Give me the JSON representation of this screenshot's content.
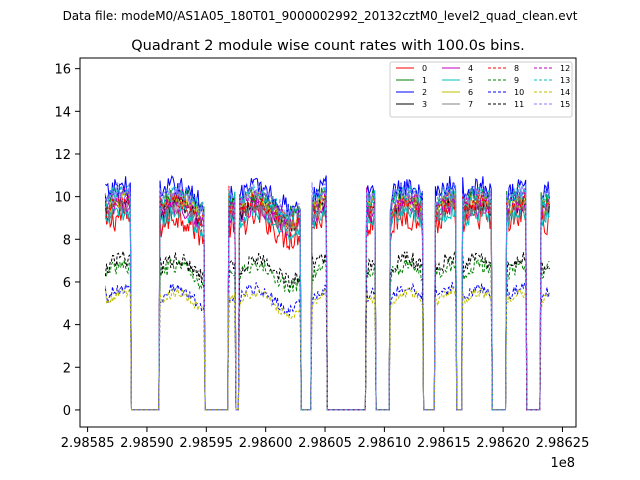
{
  "chart_data": {
    "type": "line",
    "suptitle": "Data file: modeM0/AS1A05_180T01_9000002992_20132cztM0_level2_quad_clean.evt",
    "title": "Quadrant 2 module wise count rates with 100.0s bins.",
    "xlabel": "",
    "ylabel": "",
    "x_offset_label": "1e8",
    "xlim": [
      298584360,
      298626140
    ],
    "ylim": [
      -0.8,
      16.5
    ],
    "x_ticks": [
      298585000,
      298590000,
      298595000,
      298600000,
      298605000,
      298610000,
      298615000,
      298620000,
      298625000
    ],
    "x_tick_labels": [
      "2.98585",
      "2.98590",
      "2.98595",
      "2.98600",
      "2.98605",
      "2.98610",
      "2.98615",
      "2.98620",
      "2.98625"
    ],
    "y_ticks": [
      0,
      2,
      4,
      6,
      8,
      10,
      12,
      14,
      16
    ],
    "y_tick_labels": [
      "0",
      "2",
      "4",
      "6",
      "8",
      "10",
      "12",
      "14",
      "16"
    ],
    "segments": [
      {
        "x_start": 298586500,
        "x_end": 298588600
      },
      {
        "x_start": 298591100,
        "x_end": 298594800
      },
      {
        "x_start": 298596900,
        "x_end": 298597400
      },
      {
        "x_start": 298597800,
        "x_end": 298602900
      },
      {
        "x_start": 298603900,
        "x_end": 298605100
      },
      {
        "x_start": 298608500,
        "x_end": 298609200
      },
      {
        "x_start": 298610500,
        "x_end": 298613200
      },
      {
        "x_start": 298614300,
        "x_end": 298616000
      },
      {
        "x_start": 298616600,
        "x_end": 298619000
      },
      {
        "x_start": 298620300,
        "x_end": 298621900
      },
      {
        "x_start": 298623200,
        "x_end": 298623900
      }
    ],
    "series": [
      {
        "name": "0",
        "color": "#ff0000",
        "dashed": false,
        "base": 8.6,
        "amp": 1.1
      },
      {
        "name": "1",
        "color": "#008000",
        "dashed": false,
        "base": 9.6,
        "amp": 0.8
      },
      {
        "name": "2",
        "color": "#0000ff",
        "dashed": false,
        "base": 10.0,
        "amp": 0.9
      },
      {
        "name": "3",
        "color": "#000000",
        "dashed": false,
        "base": 9.2,
        "amp": 0.7
      },
      {
        "name": "4",
        "color": "#bf00bf",
        "dashed": false,
        "base": 9.0,
        "amp": 0.7
      },
      {
        "name": "5",
        "color": "#00bfbf",
        "dashed": false,
        "base": 8.8,
        "amp": 0.7
      },
      {
        "name": "6",
        "color": "#bfbf00",
        "dashed": false,
        "base": 9.4,
        "amp": 0.7
      },
      {
        "name": "7",
        "color": "#808080",
        "dashed": false,
        "base": 9.1,
        "amp": 0.7
      },
      {
        "name": "8",
        "color": "#ff0000",
        "dashed": true,
        "base": 9.3,
        "amp": 0.7
      },
      {
        "name": "9",
        "color": "#008000",
        "dashed": true,
        "base": 6.3,
        "amp": 0.6
      },
      {
        "name": "10",
        "color": "#0000ff",
        "dashed": true,
        "base": 5.2,
        "amp": 0.5
      },
      {
        "name": "11",
        "color": "#000000",
        "dashed": true,
        "base": 6.6,
        "amp": 0.6
      },
      {
        "name": "12",
        "color": "#bf00bf",
        "dashed": true,
        "base": 9.5,
        "amp": 0.7
      },
      {
        "name": "13",
        "color": "#00bfbf",
        "dashed": true,
        "base": 9.7,
        "amp": 0.7
      },
      {
        "name": "14",
        "color": "#bfbf00",
        "dashed": true,
        "base": 5.0,
        "amp": 0.4
      },
      {
        "name": "15",
        "color": "#8080ff",
        "dashed": true,
        "base": 9.8,
        "amp": 0.7
      }
    ],
    "legend_position": "top-right",
    "legend_columns": 4
  }
}
